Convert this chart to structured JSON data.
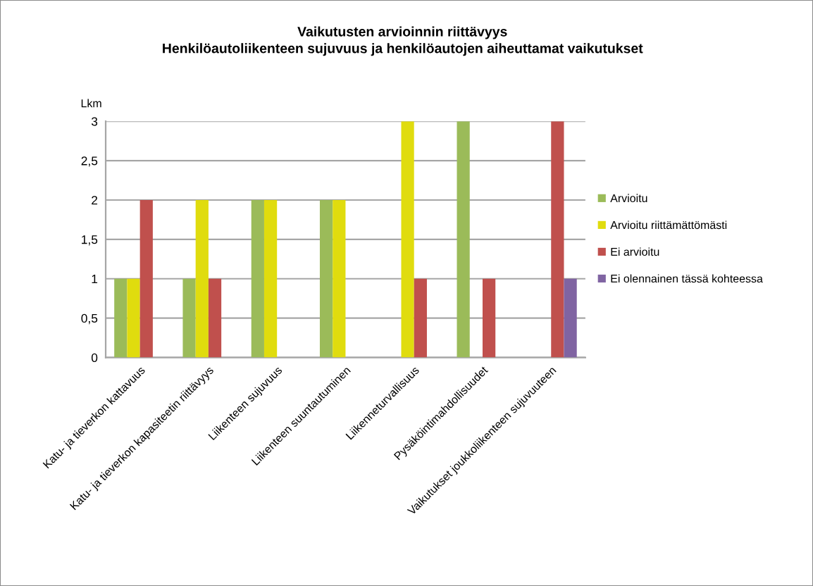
{
  "chart_data": {
    "type": "bar",
    "title": "Vaikutusten arvioinnin riittävyys\nHenkilöautoliikenteen sujuvuus ja henkilöautojen aiheuttamat vaikutukset",
    "ylabel": "Lkm",
    "categories": [
      "Katu- ja tieverkon kattavuus",
      "Katu- ja tieverkon kapasiteetin riittävyys",
      "Liikenteen sujuvuus",
      "Liikenteen suuntautuminen",
      "Liikenneturvallisuus",
      "Pysäköintimahdollisuudet",
      "Vaikutukset joukkoliikenteen sujuvuuteen"
    ],
    "series": [
      {
        "name": "Arvioitu",
        "color": "#9bbb59",
        "values": [
          1,
          1,
          2,
          2,
          null,
          3,
          null
        ]
      },
      {
        "name": "Arvioitu riittämättömästi",
        "color": "#e0dc0e",
        "values": [
          1,
          2,
          2,
          2,
          3,
          null,
          null
        ]
      },
      {
        "name": "Ei arvioitu",
        "color": "#c0504d",
        "values": [
          2,
          1,
          null,
          null,
          1,
          1,
          3
        ]
      },
      {
        "name": "Ei olennainen tässä kohteessa",
        "color": "#8064a2",
        "values": [
          null,
          null,
          null,
          null,
          null,
          null,
          1
        ]
      }
    ],
    "ylim": [
      0,
      3
    ],
    "yticks": [
      0,
      {
        "value": 0.5,
        "label": "0,5"
      },
      1,
      {
        "value": 1.5,
        "label": "1,5"
      },
      2,
      {
        "value": 2.5,
        "label": "2,5"
      },
      3
    ],
    "grid": "y",
    "legend": "right"
  }
}
